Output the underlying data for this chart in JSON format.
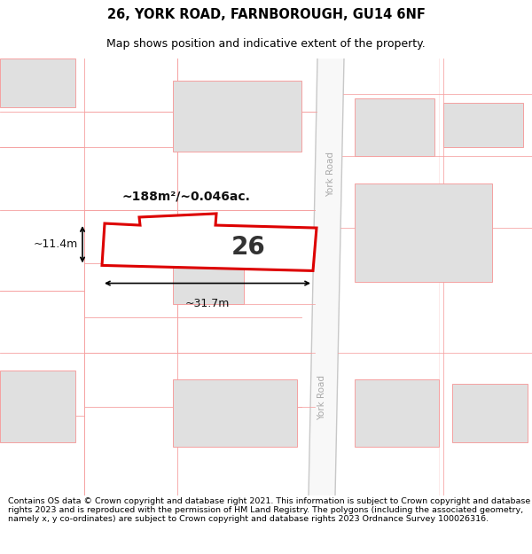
{
  "title": "26, YORK ROAD, FARNBOROUGH, GU14 6NF",
  "subtitle": "Map shows position and indicative extent of the property.",
  "footer": "Contains OS data © Crown copyright and database right 2021. This information is subject to Crown copyright and database rights 2023 and is reproduced with the permission of HM Land Registry. The polygons (including the associated geometry, namely x, y co-ordinates) are subject to Crown copyright and database rights 2023 Ordnance Survey 100026316.",
  "bg_color": "#ffffff",
  "building_fill": "#e0e0e0",
  "building_edge": "#f5a0a0",
  "road_line_color": "#f5a0a0",
  "road_bg": "#f0f0f0",
  "road_label_color": "#aaaaaa",
  "highlight_fill": "#ffffff",
  "highlight_edge": "#dd0000",
  "area_text": "~188m²/~0.046ac.",
  "dim_h": "~11.4m",
  "dim_w": "~31.7m",
  "prop_label": "26",
  "title_fontsize": 10.5,
  "subtitle_fontsize": 9,
  "footer_fontsize": 6.8
}
